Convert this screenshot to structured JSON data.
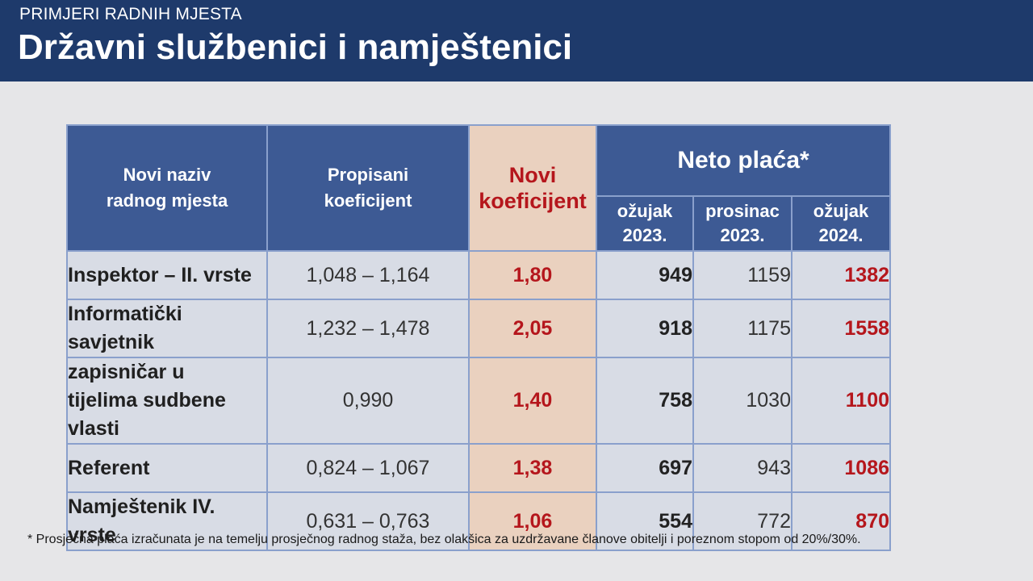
{
  "header": {
    "supertitle": "PRIMJERI RADNIH MJESTA",
    "title": "Državni službenici i namještenici"
  },
  "table": {
    "headers": {
      "naziv": "Novi naziv radnog mjesta",
      "propisani": "Propisani koeficijent",
      "novi": "Novi koeficijent",
      "neto": "Neto plaća*",
      "periods": [
        "ožujak 2023.",
        "prosinac 2023.",
        "ožujak 2024."
      ]
    },
    "rows": [
      {
        "name": "Inspektor – II. vrste",
        "coef": "1,048  – 1,164",
        "novi": "1,80",
        "v1": "949",
        "v2": "1159",
        "v3": "1382"
      },
      {
        "name": "Informatički savjetnik",
        "coef": "1,232 – 1,478",
        "novi": "2,05",
        "v1": "918",
        "v2": "1175",
        "v3": "1558"
      },
      {
        "name": "zapisničar u tijelima sudbene vlasti",
        "coef": "0,990",
        "novi": "1,40",
        "v1": "758",
        "v2": "1030",
        "v3": "1100"
      },
      {
        "name": "Referent",
        "coef": "0,824 – 1,067",
        "novi": "1,38",
        "v1": "697",
        "v2": "943",
        "v3": "1086"
      },
      {
        "name": "Namještenik IV. vrste",
        "coef": "0,631 – 0,763",
        "novi": "1,06",
        "v1": "554",
        "v2": "772",
        "v3": "870"
      }
    ]
  },
  "footnote": "* Prosječna plaća izračunata je na temelju prosječnog radnog staža, bez olakšica za uzdržavane članove obitelji i poreznom stopom od 20%/30%.",
  "colors": {
    "header_bg": "#1e3a6b",
    "table_header_bg": "#3d5a94",
    "highlight_bg": "#ead1bf",
    "highlight_text": "#b5161c"
  }
}
